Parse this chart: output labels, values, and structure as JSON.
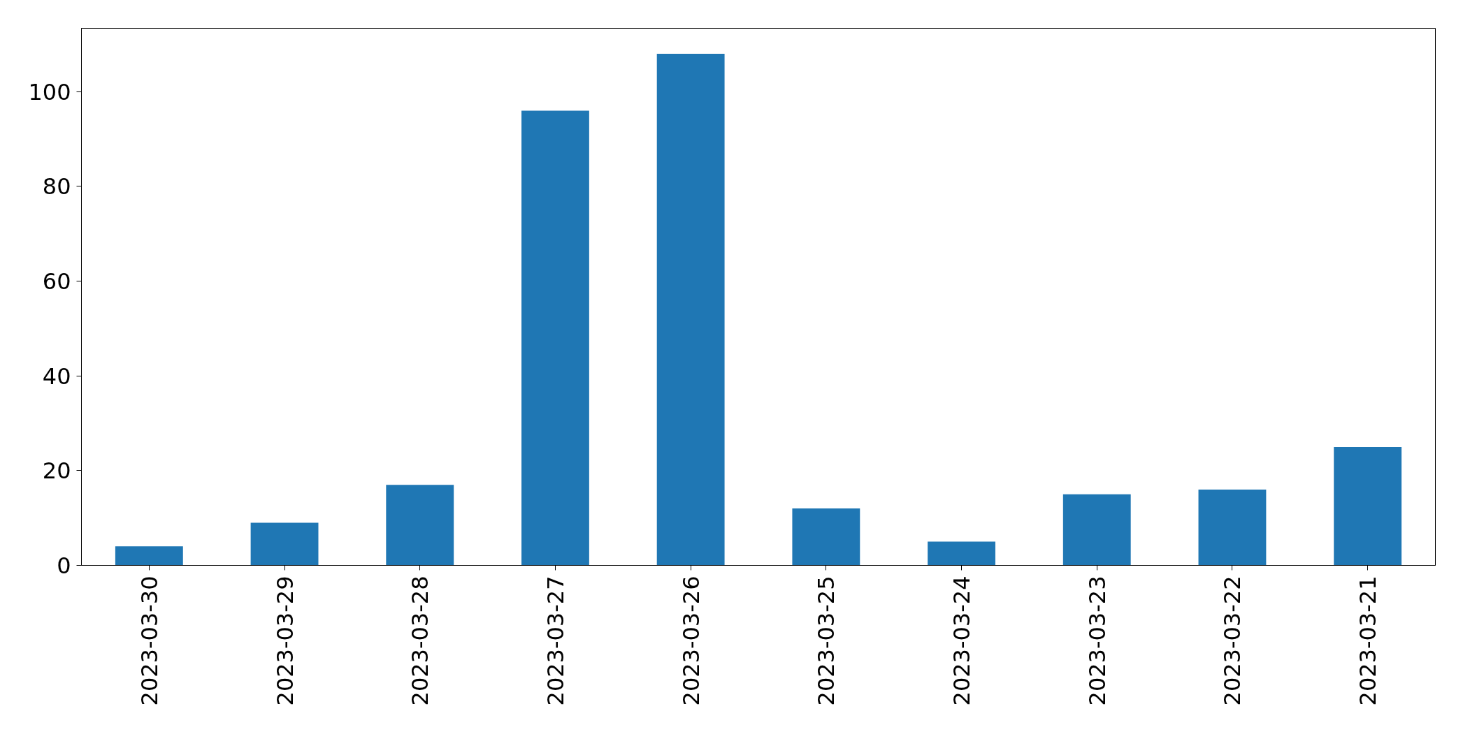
{
  "chart_data": {
    "type": "bar",
    "categories": [
      "2023-03-30",
      "2023-03-29",
      "2023-03-28",
      "2023-03-27",
      "2023-03-26",
      "2023-03-25",
      "2023-03-24",
      "2023-03-23",
      "2023-03-22",
      "2023-03-21"
    ],
    "values": [
      4,
      9,
      17,
      96,
      108,
      12,
      5,
      15,
      16,
      25
    ],
    "color": "#1f77b4",
    "ylim": [
      0,
      113.4
    ],
    "yticks": [
      0,
      20,
      40,
      60,
      80,
      100
    ]
  }
}
